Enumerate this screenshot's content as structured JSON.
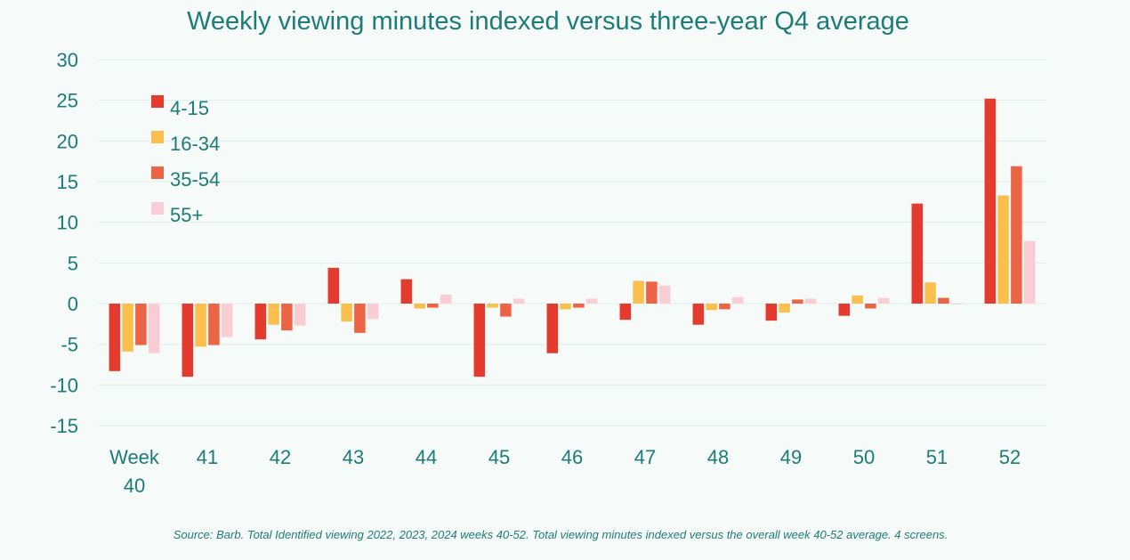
{
  "chart_data": {
    "type": "bar",
    "title": "Weekly viewing minutes indexed versus three-year Q4 average",
    "categories": [
      [
        "Week",
        "40"
      ],
      [
        "41"
      ],
      [
        "42"
      ],
      [
        "43"
      ],
      [
        "44"
      ],
      [
        "45"
      ],
      [
        "46"
      ],
      [
        "47"
      ],
      [
        "48"
      ],
      [
        "49"
      ],
      [
        "50"
      ],
      [
        "51"
      ],
      [
        "52"
      ]
    ],
    "series": [
      {
        "name": "4-15",
        "color": "#e53b2f",
        "values": [
          -8.3,
          -9.0,
          -4.4,
          4.4,
          3.0,
          -9.0,
          -6.1,
          -2.0,
          -2.6,
          -2.1,
          -1.5,
          12.3,
          25.2
        ]
      },
      {
        "name": "16-34",
        "color": "#fbbf4e",
        "values": [
          -5.9,
          -5.3,
          -2.6,
          -2.2,
          -0.6,
          -0.5,
          -0.7,
          2.8,
          -0.8,
          -1.1,
          1.0,
          2.6,
          13.3
        ]
      },
      {
        "name": "35-54",
        "color": "#ec6446",
        "values": [
          -5.1,
          -5.1,
          -3.3,
          -3.6,
          -0.5,
          -1.6,
          -0.5,
          2.7,
          -0.7,
          0.5,
          -0.6,
          0.7,
          16.9
        ]
      },
      {
        "name": "55+",
        "color": "#f9cdd3",
        "values": [
          -6.1,
          -4.1,
          -2.7,
          -1.9,
          1.1,
          0.6,
          0.6,
          2.2,
          0.8,
          0.6,
          0.7,
          -0.1,
          7.7
        ]
      }
    ],
    "ylim": [
      -15,
      30
    ],
    "yticks": [
      30,
      25,
      20,
      15,
      10,
      5,
      0,
      -5,
      -10,
      -15
    ],
    "xlabel": "",
    "ylabel": "",
    "grid": true,
    "legend": "top-left"
  },
  "source": "Source: Barb. Total Identified viewing 2022, 2023, 2024 weeks 40-52. Total viewing minutes indexed versus the overall week 40-52 average. 4 screens."
}
